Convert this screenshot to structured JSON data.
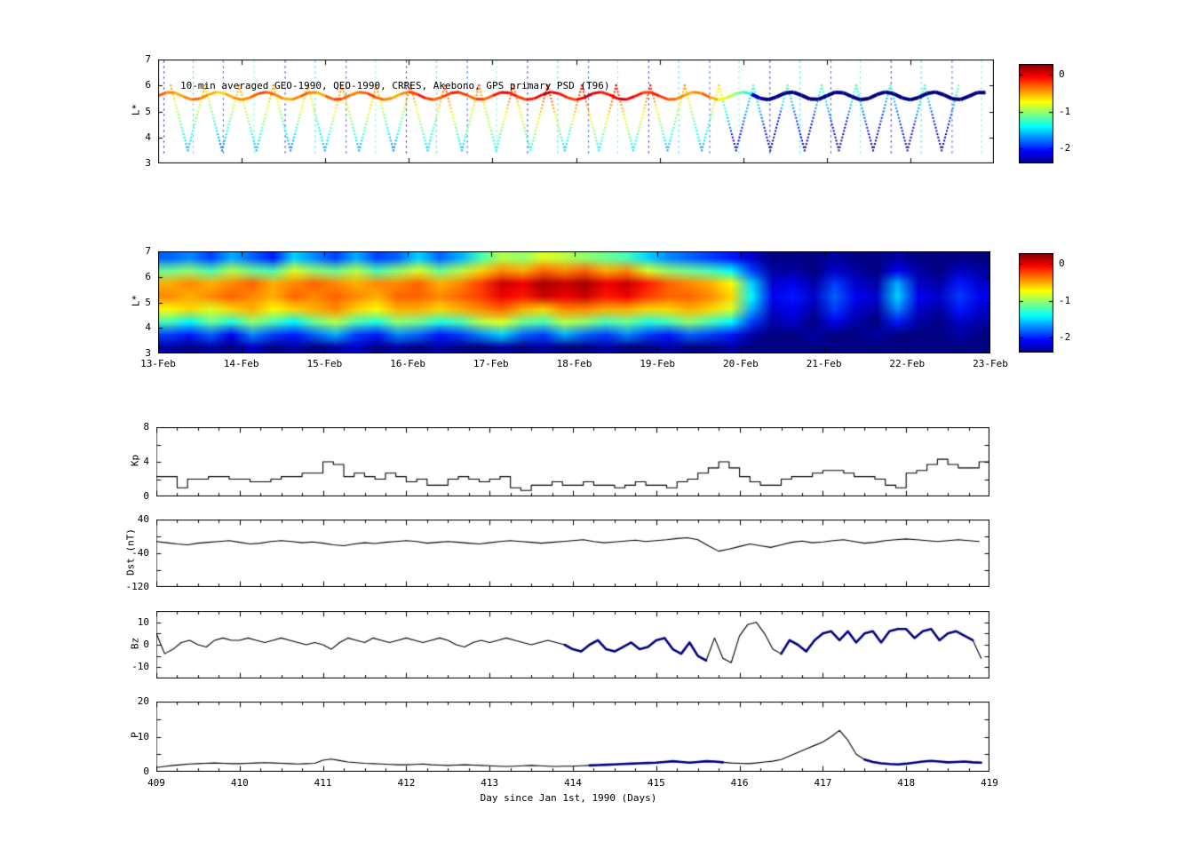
{
  "figure": {
    "background": "#ffffff",
    "line_color": "#000000",
    "overlay_color": "#000080"
  },
  "colorbar": {
    "tick_labels": [
      "0",
      "-1",
      "-2"
    ],
    "tick_values": [
      0,
      -1,
      -2
    ],
    "clim": [
      -2.4,
      0.3
    ]
  },
  "chart_data": [
    {
      "id": "psd_scatter",
      "type": "scatter",
      "title": "10-min averaged GEO-1990, QEO-1990, CRRES, Akebono, GPS  primary PSD (T96)",
      "ylabel": "L*",
      "ylim": [
        3,
        7
      ],
      "yticks": [
        3,
        4,
        5,
        6,
        7
      ],
      "xlim": [
        409,
        419
      ],
      "clim": [
        -2.4,
        0.3
      ],
      "geo_band": {
        "x0": 409,
        "dx": 0.1,
        "L": 5.6,
        "values": [
          -0.3,
          -0.4,
          -0.5,
          -0.4,
          -0.3,
          -0.4,
          -0.5,
          -0.6,
          -0.5,
          -0.4,
          -0.4,
          -0.3,
          -0.2,
          -0.3,
          -0.4,
          -0.5,
          -0.4,
          -0.3,
          -0.4,
          -0.5,
          -0.3,
          -0.2,
          -0.3,
          -0.4,
          -0.3,
          -0.2,
          -0.3,
          -0.4,
          -0.5,
          -0.4,
          -0.2,
          -0.1,
          -0.2,
          -0.3,
          -0.2,
          -0.1,
          -0.2,
          -0.3,
          -0.2,
          -0.3,
          -0.1,
          0.0,
          -0.1,
          -0.2,
          -0.1,
          0.0,
          0.1,
          0.0,
          -0.1,
          -0.2,
          0.0,
          0.1,
          0.0,
          -0.1,
          0.0,
          0.1,
          0.0,
          -0.1,
          -0.2,
          -0.1,
          -0.2,
          -0.3,
          -0.4,
          -0.5,
          -0.4,
          -0.3,
          -0.5,
          -0.7,
          -0.9,
          -1.1,
          -1.3,
          -2.2,
          -2.4,
          -2.4,
          -2.4,
          -2.4,
          -2.4,
          -2.4,
          -2.4,
          -2.4,
          -2.4,
          -2.4,
          -2.4,
          -2.4,
          -2.4,
          -2.4,
          -2.4,
          -2.4,
          -2.4,
          -2.4,
          -2.4,
          -2.4,
          -2.4,
          -2.4,
          -2.4,
          -2.4,
          -2.4,
          -2.4,
          -2.4,
          -2.4
        ]
      },
      "crres": {
        "t_start": 409.15,
        "period": 0.41,
        "t_end": 418.95,
        "Lmin": 3.5,
        "Lmax": 6.0,
        "base": {
          "x0": 409,
          "dx": 0.1,
          "values": [
            -0.3,
            -0.4,
            -0.4,
            -0.3,
            -0.3,
            -0.4,
            -0.5,
            -0.5,
            -0.4,
            -0.4,
            -0.4,
            -0.3,
            -0.3,
            -0.3,
            -0.4,
            -0.4,
            -0.4,
            -0.3,
            -0.4,
            -0.4,
            -0.3,
            -0.2,
            -0.3,
            -0.3,
            -0.3,
            -0.2,
            -0.3,
            -0.4,
            -0.4,
            -0.4,
            -0.2,
            -0.2,
            -0.2,
            -0.3,
            -0.2,
            -0.1,
            -0.2,
            -0.2,
            -0.2,
            -0.3,
            -0.1,
            -0.1,
            -0.1,
            -0.2,
            -0.1,
            0.0,
            0.0,
            0.0,
            -0.1,
            -0.2,
            0.0,
            0.0,
            0.0,
            -0.1,
            0.0,
            0.0,
            0.0,
            -0.1,
            -0.1,
            -0.1,
            -0.2,
            -0.3,
            -0.3,
            -0.4,
            -0.4,
            -0.3,
            -0.4,
            -0.6,
            -0.8,
            -1.0,
            -1.1,
            -1.2,
            -1.1,
            -1.2,
            -1.3,
            -1.1,
            -1.2,
            -1.1,
            -1.3,
            -1.2,
            -1.1,
            -1.2,
            -1.3,
            -1.1,
            -1.2,
            -1.1,
            -1.2,
            -1.3,
            -1.2,
            -1.1,
            -1.2,
            -1.1,
            -1.2,
            -1.3,
            -1.1,
            -1.2,
            -1.1,
            -1.2,
            -1.3,
            -1.2
          ]
        }
      },
      "streaks": {
        "times": [
          409.07,
          409.42,
          409.78,
          410.15,
          410.52,
          410.88,
          411.25,
          411.6,
          411.97,
          412.33,
          412.7,
          413.05,
          413.42,
          413.78,
          414.15,
          414.5,
          414.87,
          415.23,
          415.6,
          415.95,
          416.32,
          416.68,
          417.05,
          417.4,
          417.77,
          418.13,
          418.5,
          418.85
        ],
        "Lmin": 3.3,
        "Lmax": 6.95,
        "values": [
          -2.2,
          -1.5,
          -1.9,
          -1.2
        ]
      }
    },
    {
      "id": "psd_map",
      "type": "heatmap",
      "ylabel": "L*",
      "ylim": [
        3,
        7
      ],
      "yticks": [
        3,
        4,
        5,
        6,
        7
      ],
      "xlim": [
        409,
        419
      ],
      "clim": [
        -2.4,
        0.3
      ],
      "x_tick_labels": [
        "13-Feb",
        "14-Feb",
        "15-Feb",
        "16-Feb",
        "17-Feb",
        "18-Feb",
        "19-Feb",
        "20-Feb",
        "21-Feb",
        "22-Feb",
        "23-Feb"
      ],
      "L_edges": [
        3,
        3.5,
        4,
        4.5,
        5,
        5.5,
        6,
        6.5,
        7
      ],
      "t0": 409,
      "dt": 0.25,
      "grid": [
        [
          -2.3,
          -2.4,
          -2.3,
          -2.4,
          -2.2,
          -2.4,
          -2.3,
          -2.4,
          -2.3,
          -2.2,
          -2.4,
          -2.3,
          -2.4,
          -2.3,
          -2.4,
          -2.4,
          -2.3,
          -2.4,
          -2.3,
          -2.4,
          -2.4,
          -2.3,
          -2.4,
          -2.4,
          -2.3,
          -2.4,
          -2.4,
          -2.3,
          -2.4,
          -2.4,
          -2.4,
          -2.4,
          -2.4,
          -2.4,
          -2.4,
          -2.4,
          -2.4,
          -2.4,
          -2.4,
          -2.4
        ],
        [
          -1.9,
          -2.0,
          -1.8,
          -2.1,
          -1.7,
          -1.9,
          -2.0,
          -1.8,
          -1.6,
          -1.9,
          -2.0,
          -1.7,
          -1.8,
          -2.0,
          -1.9,
          -1.7,
          -1.5,
          -1.8,
          -1.9,
          -1.6,
          -1.8,
          -1.9,
          -1.7,
          -1.9,
          -2.0,
          -1.8,
          -1.9,
          -2.0,
          -2.3,
          -2.4,
          -2.4,
          -2.3,
          -2.4,
          -2.4,
          -2.3,
          -2.4,
          -2.4,
          -2.4,
          -2.3,
          -2.4
        ],
        [
          -1.2,
          -1.4,
          -1.1,
          -1.3,
          -1.0,
          -1.2,
          -1.4,
          -1.1,
          -0.9,
          -1.2,
          -1.3,
          -1.0,
          -1.1,
          -1.3,
          -1.2,
          -0.9,
          -0.8,
          -1.1,
          -1.2,
          -0.9,
          -1.0,
          -1.2,
          -1.1,
          -1.3,
          -1.2,
          -1.0,
          -1.2,
          -1.4,
          -1.9,
          -2.3,
          -2.2,
          -2.4,
          -2.1,
          -2.3,
          -2.4,
          -2.0,
          -2.3,
          -2.4,
          -2.2,
          -2.3
        ],
        [
          -0.7,
          -0.6,
          -0.8,
          -0.6,
          -0.5,
          -0.7,
          -0.6,
          -0.5,
          -0.4,
          -0.6,
          -0.7,
          -0.5,
          -0.5,
          -0.6,
          -0.5,
          -0.4,
          -0.3,
          -0.5,
          -0.6,
          -0.4,
          -0.4,
          -0.5,
          -0.5,
          -0.6,
          -0.6,
          -0.5,
          -0.6,
          -0.8,
          -1.6,
          -2.2,
          -2.1,
          -2.3,
          -1.9,
          -2.2,
          -2.3,
          -1.7,
          -2.2,
          -2.3,
          -2.0,
          -2.2
        ],
        [
          -0.4,
          -0.5,
          -0.4,
          -0.3,
          -0.4,
          -0.5,
          -0.3,
          -0.4,
          -0.3,
          -0.4,
          -0.5,
          -0.3,
          -0.3,
          -0.4,
          -0.3,
          -0.2,
          0.0,
          -0.1,
          0.1,
          0.0,
          0.1,
          -0.1,
          0.0,
          -0.2,
          -0.3,
          -0.3,
          -0.4,
          -0.6,
          -1.4,
          -2.1,
          -2.0,
          -2.2,
          -1.8,
          -2.1,
          -2.2,
          -1.5,
          -2.1,
          -2.2,
          -1.9,
          -2.1
        ],
        [
          -0.5,
          -0.4,
          -0.5,
          -0.4,
          -0.3,
          -0.5,
          -0.4,
          -0.3,
          -0.4,
          -0.5,
          -0.4,
          -0.4,
          -0.3,
          -0.5,
          -0.4,
          -0.2,
          0.1,
          0.0,
          0.2,
          0.1,
          0.2,
          0.0,
          0.1,
          -0.1,
          -0.3,
          -0.4,
          -0.5,
          -0.7,
          -1.5,
          -2.2,
          -2.1,
          -2.3,
          -1.9,
          -2.2,
          -2.3,
          -1.6,
          -2.2,
          -2.3,
          -2.0,
          -2.2
        ],
        [
          -1.1,
          -1.0,
          -1.2,
          -0.9,
          -1.1,
          -1.2,
          -0.8,
          -1.0,
          -1.1,
          -0.9,
          -1.2,
          -1.0,
          -0.8,
          -1.1,
          -0.9,
          -0.6,
          -0.4,
          -0.5,
          -0.3,
          -0.4,
          -0.3,
          -0.5,
          -0.4,
          -0.8,
          -1.0,
          -1.1,
          -1.2,
          -1.4,
          -1.9,
          -2.3,
          -2.3,
          -2.4,
          -2.2,
          -2.3,
          -2.4,
          -2.1,
          -2.3,
          -2.4,
          -2.2,
          -2.3
        ],
        [
          -1.8,
          -1.7,
          -1.9,
          -1.6,
          -1.8,
          -2.0,
          -1.5,
          -1.7,
          -1.9,
          -1.6,
          -1.9,
          -1.8,
          -1.5,
          -1.8,
          -1.6,
          -1.2,
          -0.9,
          -1.0,
          -0.8,
          -0.9,
          -1.0,
          -1.1,
          -1.2,
          -1.5,
          -1.7,
          -1.8,
          -1.9,
          -2.0,
          -2.2,
          -2.4,
          -2.4,
          -2.4,
          -2.3,
          -2.4,
          -2.4,
          -2.3,
          -2.4,
          -2.4,
          -2.4,
          -2.4
        ]
      ]
    },
    {
      "id": "kp",
      "type": "line",
      "step": true,
      "ylabel": "Kp",
      "ylim": [
        0,
        8
      ],
      "yticks": [
        0,
        4,
        8
      ],
      "yminor": [
        2,
        6
      ],
      "xlim": [
        409,
        419
      ],
      "x0": 409,
      "dx": 0.125,
      "values": [
        2.3,
        2.3,
        1.0,
        2.0,
        2.0,
        2.3,
        2.3,
        2.0,
        2.0,
        1.7,
        1.7,
        2.0,
        2.3,
        2.3,
        2.7,
        2.7,
        4.0,
        3.7,
        2.3,
        2.7,
        2.3,
        2.0,
        2.7,
        2.3,
        1.7,
        2.0,
        1.3,
        1.3,
        2.0,
        2.3,
        2.0,
        1.7,
        2.0,
        2.3,
        1.0,
        0.7,
        1.3,
        1.3,
        1.7,
        1.3,
        1.3,
        1.7,
        1.3,
        1.3,
        1.0,
        1.3,
        1.7,
        1.3,
        1.3,
        1.0,
        1.7,
        2.0,
        2.7,
        3.3,
        4.0,
        3.3,
        2.3,
        1.7,
        1.3,
        1.3,
        2.0,
        2.3,
        2.3,
        2.7,
        3.0,
        3.0,
        2.7,
        2.3,
        2.3,
        2.0,
        1.3,
        1.0,
        2.7,
        3.0,
        3.7,
        4.3,
        3.7,
        3.3,
        3.3,
        4.0
      ]
    },
    {
      "id": "dst",
      "type": "line",
      "ylabel": "Dst (nT)",
      "ylim": [
        -120,
        40
      ],
      "yticks": [
        40,
        -40,
        -120
      ],
      "yminor": [
        0,
        -80
      ],
      "xlim": [
        409,
        419
      ],
      "x0": 409,
      "dx": 0.125,
      "values": [
        -12,
        -15,
        -18,
        -20,
        -16,
        -14,
        -12,
        -10,
        -14,
        -18,
        -16,
        -12,
        -10,
        -12,
        -15,
        -13,
        -16,
        -20,
        -22,
        -18,
        -15,
        -17,
        -14,
        -12,
        -10,
        -12,
        -16,
        -14,
        -12,
        -14,
        -16,
        -18,
        -15,
        -12,
        -10,
        -12,
        -14,
        -16,
        -14,
        -12,
        -10,
        -8,
        -12,
        -15,
        -13,
        -11,
        -9,
        -12,
        -10,
        -8,
        -5,
        -3,
        -8,
        -22,
        -35,
        -30,
        -24,
        -18,
        -22,
        -26,
        -20,
        -14,
        -11,
        -15,
        -13,
        -10,
        -8,
        -12,
        -16,
        -14,
        -10,
        -8,
        -6,
        -8,
        -10,
        -12,
        -10,
        -8,
        -10,
        -12
      ]
    },
    {
      "id": "bz",
      "type": "line",
      "ylabel": "Bz",
      "ylim": [
        -15,
        15
      ],
      "yticks": [
        10,
        0,
        -10
      ],
      "yminor": [
        5,
        -5
      ],
      "xlim": [
        409,
        419
      ],
      "x0": 409,
      "dx": 0.1,
      "bold_ranges": [
        [
          413.9,
          415.6
        ],
        [
          416.45,
          418.8
        ]
      ],
      "bold_color": "#000080",
      "values": [
        5,
        -4,
        -2,
        1,
        2,
        0,
        -1,
        2,
        3,
        2,
        2,
        3,
        2,
        1,
        2,
        3,
        2,
        1,
        0,
        1,
        0,
        -2,
        1,
        3,
        2,
        1,
        3,
        2,
        1,
        2,
        3,
        2,
        1,
        2,
        3,
        2,
        0,
        -1,
        1,
        2,
        1,
        2,
        3,
        2,
        1,
        0,
        1,
        2,
        1,
        0,
        -2,
        -3,
        0,
        2,
        -2,
        -3,
        -1,
        1,
        -2,
        -1,
        2,
        3,
        -2,
        -4,
        1,
        -5,
        -7,
        3,
        -6,
        -8,
        4,
        9,
        10,
        5,
        -2,
        -4,
        2,
        0,
        -3,
        2,
        5,
        6,
        2,
        6,
        1,
        5,
        6,
        1,
        6,
        7,
        7,
        3,
        6,
        7,
        2,
        5,
        6,
        4,
        2,
        -6
      ]
    },
    {
      "id": "p",
      "type": "line",
      "ylabel": "P",
      "ylim": [
        0,
        20
      ],
      "yticks": [
        20,
        10,
        0
      ],
      "yminor": [
        5,
        15
      ],
      "xlim": [
        409,
        419
      ],
      "x0": 409,
      "dx": 0.1,
      "bold_ranges": [
        [
          414.2,
          415.8
        ],
        [
          417.45,
          418.95
        ]
      ],
      "bold_color": "#000080",
      "x_tick_labels": [
        "409",
        "410",
        "411",
        "412",
        "413",
        "414",
        "415",
        "416",
        "417",
        "418",
        "419"
      ],
      "xlabel": "Day since Jan 1st, 1990 (Days)",
      "values": [
        1.2,
        1.5,
        1.8,
        2.0,
        2.2,
        2.3,
        2.4,
        2.5,
        2.4,
        2.3,
        2.3,
        2.4,
        2.5,
        2.6,
        2.5,
        2.4,
        2.3,
        2.2,
        2.3,
        2.4,
        3.3,
        3.6,
        3.2,
        2.8,
        2.6,
        2.4,
        2.3,
        2.2,
        2.1,
        2.0,
        2.0,
        2.1,
        2.2,
        2.0,
        1.9,
        1.8,
        1.9,
        2.0,
        1.9,
        1.8,
        1.7,
        1.6,
        1.5,
        1.6,
        1.7,
        1.8,
        1.7,
        1.6,
        1.5,
        1.6,
        1.6,
        1.7,
        1.8,
        1.9,
        2.0,
        2.1,
        2.2,
        2.3,
        2.4,
        2.5,
        2.6,
        2.8,
        3.0,
        2.8,
        2.6,
        2.8,
        3.0,
        2.9,
        2.7,
        2.5,
        2.4,
        2.3,
        2.5,
        2.8,
        3.0,
        3.5,
        4.5,
        5.5,
        6.5,
        7.5,
        8.5,
        10.0,
        11.8,
        9.0,
        5.0,
        3.5,
        2.8,
        2.4,
        2.2,
        2.1,
        2.3,
        2.6,
        2.9,
        3.1,
        2.9,
        2.7,
        2.8,
        2.9,
        2.7,
        2.6
      ]
    }
  ]
}
